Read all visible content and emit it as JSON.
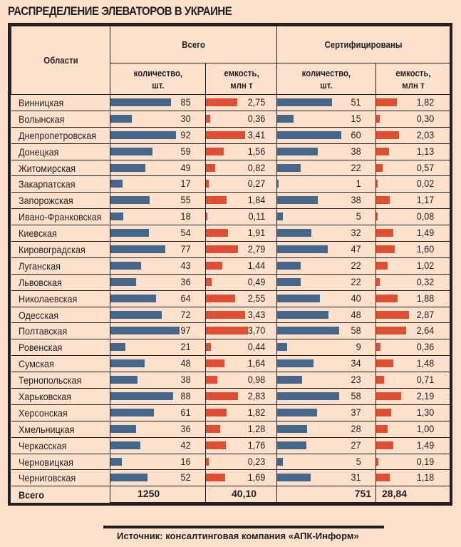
{
  "title": "РАСПРЕДЕЛЕНИЕ ЭЛЕВАТОРОВ В УКРАИНЕ",
  "header": {
    "regions": "Области",
    "group_total": "Всего",
    "group_certified": "Сертифицированы",
    "count_label_1": "количество,",
    "count_label_2": "шт.",
    "capacity_label_1": "емкость,",
    "capacity_label_2": "млн т"
  },
  "colors": {
    "count_bar": "#46678a",
    "capacity_bar": "#dd5036",
    "background": "#fde1cd"
  },
  "source": "Источник: консалтинговая компания «АПК-Информ»",
  "chart_data": {
    "type": "table",
    "title": "РАСПРЕДЕЛЕНИЕ ЭЛЕВАТОРОВ В УКРАИНЕ",
    "columns": [
      "Области",
      "Всего: количество, шт.",
      "Всего: емкость, млн т",
      "Сертифицированы: количество, шт.",
      "Сертифицированы: емкость, млн т"
    ],
    "rows": [
      {
        "region": "Винницкая",
        "total_count": 85,
        "total_cap": "2,75",
        "cert_count": 51,
        "cert_cap": "1,82"
      },
      {
        "region": "Волынская",
        "total_count": 30,
        "total_cap": "0,36",
        "cert_count": 15,
        "cert_cap": "0,30"
      },
      {
        "region": "Днепропетровская",
        "total_count": 92,
        "total_cap": "3,41",
        "cert_count": 60,
        "cert_cap": "2,03"
      },
      {
        "region": "Донецкая",
        "total_count": 59,
        "total_cap": "1,56",
        "cert_count": 38,
        "cert_cap": "1,13"
      },
      {
        "region": "Житомирская",
        "total_count": 49,
        "total_cap": "0,82",
        "cert_count": 22,
        "cert_cap": "0,57"
      },
      {
        "region": "Закарпатская",
        "total_count": 17,
        "total_cap": "0,27",
        "cert_count": 1,
        "cert_cap": "0,02"
      },
      {
        "region": "Запорожская",
        "total_count": 55,
        "total_cap": "1,84",
        "cert_count": 38,
        "cert_cap": "1,17"
      },
      {
        "region": "Ивано-Франковская",
        "total_count": 18,
        "total_cap": "0,11",
        "cert_count": 5,
        "cert_cap": "0,08"
      },
      {
        "region": "Киевская",
        "total_count": 54,
        "total_cap": "1,91",
        "cert_count": 32,
        "cert_cap": "1,49"
      },
      {
        "region": "Кировоградская",
        "total_count": 77,
        "total_cap": "2,79",
        "cert_count": 47,
        "cert_cap": "1,60"
      },
      {
        "region": "Луганская",
        "total_count": 43,
        "total_cap": "1,44",
        "cert_count": 22,
        "cert_cap": "1,02"
      },
      {
        "region": "Львовская",
        "total_count": 36,
        "total_cap": "0,49",
        "cert_count": 22,
        "cert_cap": "0,32"
      },
      {
        "region": "Николаевская",
        "total_count": 64,
        "total_cap": "2,55",
        "cert_count": 40,
        "cert_cap": "1,88"
      },
      {
        "region": "Одесская",
        "total_count": 72,
        "total_cap": "3,43",
        "cert_count": 48,
        "cert_cap": "2,87"
      },
      {
        "region": "Полтавская",
        "total_count": 97,
        "total_cap": "3,70",
        "cert_count": 58,
        "cert_cap": "2,64"
      },
      {
        "region": "Ровенская",
        "total_count": 21,
        "total_cap": "0,44",
        "cert_count": 9,
        "cert_cap": "0,36"
      },
      {
        "region": "Сумская",
        "total_count": 48,
        "total_cap": "1,64",
        "cert_count": 34,
        "cert_cap": "1,48"
      },
      {
        "region": "Тернопольская",
        "total_count": 38,
        "total_cap": "0,98",
        "cert_count": 23,
        "cert_cap": "0,71"
      },
      {
        "region": "Харьковская",
        "total_count": 88,
        "total_cap": "2,83",
        "cert_count": 58,
        "cert_cap": "2,19"
      },
      {
        "region": "Херсонская",
        "total_count": 61,
        "total_cap": "1,82",
        "cert_count": 37,
        "cert_cap": "1,30"
      },
      {
        "region": "Хмельницкая",
        "total_count": 36,
        "total_cap": "1,28",
        "cert_count": 28,
        "cert_cap": "1,00"
      },
      {
        "region": "Черкасская",
        "total_count": 42,
        "total_cap": "1,76",
        "cert_count": 27,
        "cert_cap": "1,49"
      },
      {
        "region": "Черновицкая",
        "total_count": 16,
        "total_cap": "0,23",
        "cert_count": 5,
        "cert_cap": "0,19"
      },
      {
        "region": "Черниговская",
        "total_count": 52,
        "total_cap": "1,69",
        "cert_count": 31,
        "cert_cap": "1,18"
      }
    ],
    "totals": {
      "label": "Всего",
      "total_count": "1250",
      "total_cap": "40,10",
      "cert_count": "751",
      "cert_cap": "28,84"
    },
    "bar_scale": {
      "count_max": 100,
      "capacity_max": 4
    }
  }
}
